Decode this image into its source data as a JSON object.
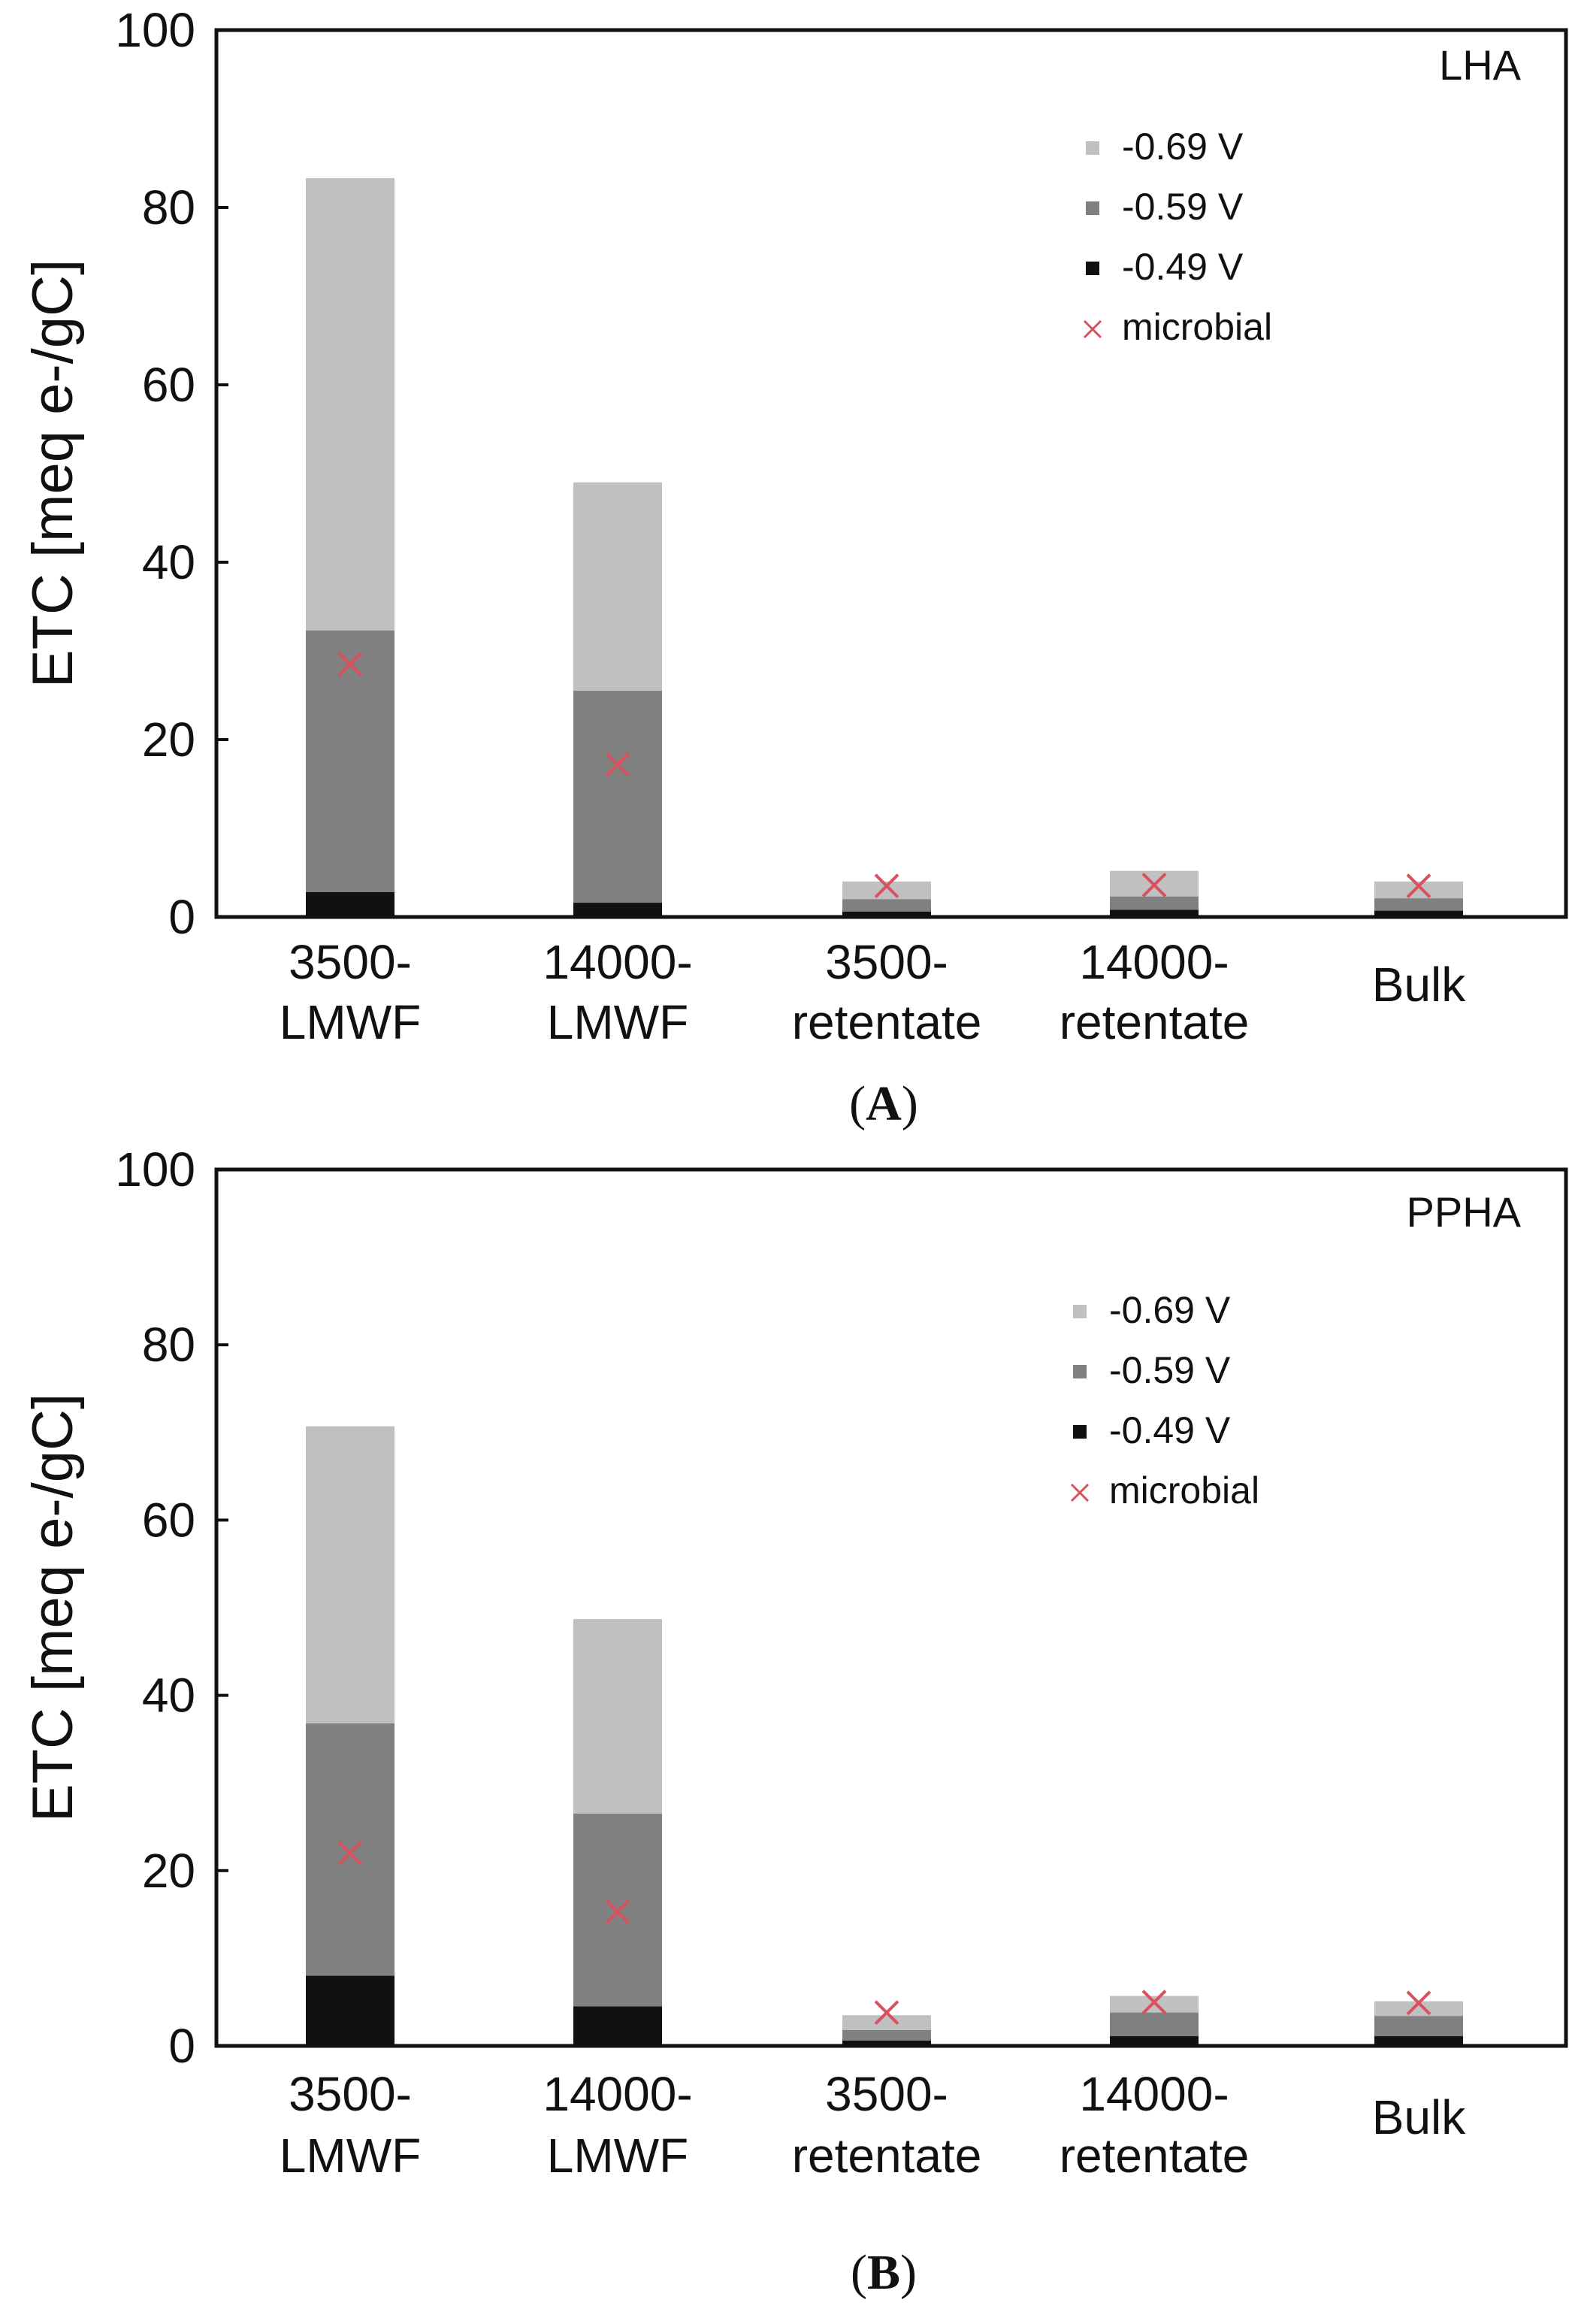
{
  "chart_data": [
    {
      "type": "bar",
      "stacked": true,
      "panel_label": "A",
      "corner_label": "LHA",
      "ylabel": "ETC [meq e-/gC]",
      "ylim": [
        0,
        100
      ],
      "yticks": [
        0,
        20,
        40,
        60,
        80,
        100
      ],
      "categories": [
        [
          "3500-",
          "LMWF"
        ],
        [
          "14000-",
          "LMWF"
        ],
        [
          "3500-",
          "retentate"
        ],
        [
          "14000-",
          "retentate"
        ],
        [
          "Bulk"
        ]
      ],
      "series": [
        {
          "name": "-0.49 V",
          "color": "#111111",
          "cumulative": [
            2.8,
            1.6,
            0.6,
            0.8,
            0.7
          ]
        },
        {
          "name": "-0.59 V",
          "color": "#808080",
          "cumulative": [
            32.3,
            25.5,
            2.0,
            2.3,
            2.1
          ]
        },
        {
          "name": "-0.69 V",
          "color": "#c0c0c0",
          "cumulative": [
            83.3,
            49.0,
            4.0,
            5.2,
            4.0
          ]
        }
      ],
      "microbial": {
        "name": "microbial",
        "color": "#d9505e",
        "values": [
          28.5,
          17.2,
          3.5,
          3.6,
          3.5
        ]
      },
      "legend_order": [
        "-0.69 V",
        "-0.59 V",
        "-0.49 V",
        "microbial"
      ],
      "legend_position": "top-right"
    },
    {
      "type": "bar",
      "stacked": true,
      "panel_label": "B",
      "corner_label": "PPHA",
      "ylabel": "ETC [meq e-/gC]",
      "ylim": [
        0,
        100
      ],
      "yticks": [
        0,
        20,
        40,
        60,
        80,
        100
      ],
      "categories": [
        [
          "3500-",
          "LMWF"
        ],
        [
          "14000-",
          "LMWF"
        ],
        [
          "3500-",
          "retentate"
        ],
        [
          "14000-",
          "retentate"
        ],
        [
          "Bulk"
        ]
      ],
      "series": [
        {
          "name": "-0.49 V",
          "color": "#111111",
          "cumulative": [
            8.0,
            4.5,
            0.6,
            1.1,
            1.1
          ]
        },
        {
          "name": "-0.59 V",
          "color": "#808080",
          "cumulative": [
            36.8,
            26.5,
            1.8,
            3.8,
            3.4
          ]
        },
        {
          "name": "-0.69 V",
          "color": "#c0c0c0",
          "cumulative": [
            70.7,
            48.7,
            3.5,
            5.7,
            5.1
          ]
        }
      ],
      "microbial": {
        "name": "microbial",
        "color": "#d9505e",
        "values": [
          22.0,
          15.3,
          3.8,
          5.0,
          4.9
        ]
      },
      "legend_order": [
        "-0.69 V",
        "-0.59 V",
        "-0.49 V",
        "microbial"
      ],
      "legend_position": "top-right"
    }
  ]
}
